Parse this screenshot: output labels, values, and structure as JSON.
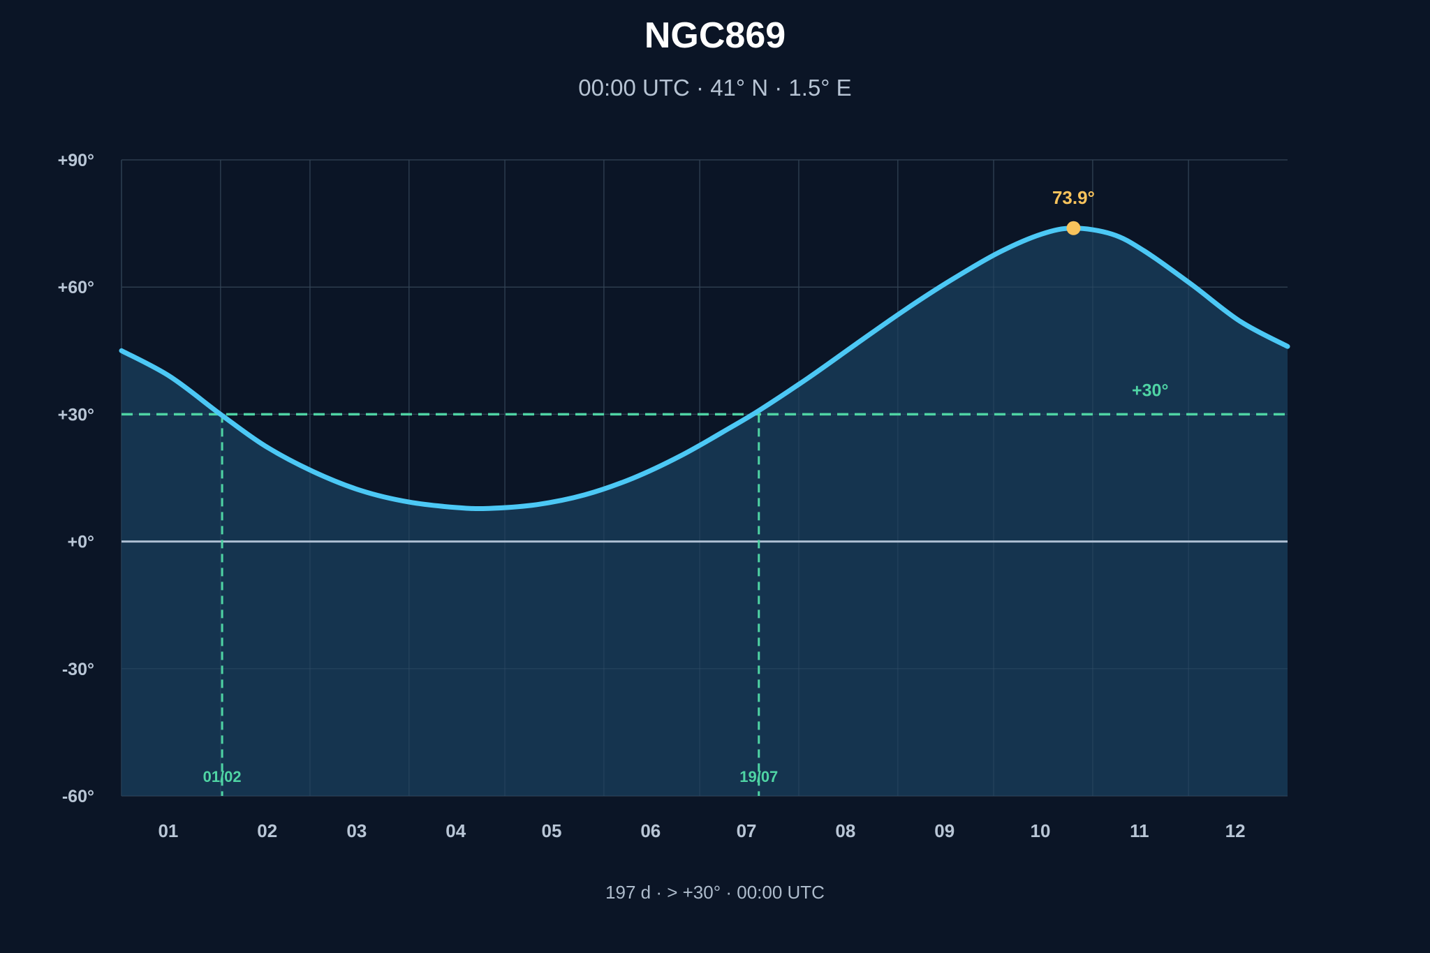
{
  "header": {
    "title": "NGC869",
    "subtitle": "00:00 UTC · 41° N · 1.5° E"
  },
  "footer": {
    "note": "197 d · > +30° · 00:00 UTC"
  },
  "colors": {
    "background": "#0b1526",
    "curve": "#4cc8f5",
    "area_fill": "#173a57",
    "grid": "#243547",
    "threshold": "#4fd4a4",
    "horizon": "#aebfd3",
    "peak": "#f8c35c"
  },
  "chart_data": {
    "type": "area",
    "title": "NGC869",
    "subtitle": "00:00 UTC · 41° N · 1.5° E",
    "xlabel": "",
    "ylabel": "",
    "x_unit": "day of year",
    "xlim": [
      0,
      365
    ],
    "ylim": [
      -60,
      90
    ],
    "yticks": [
      {
        "value": -60,
        "label": "-60°"
      },
      {
        "value": -30,
        "label": "-30°"
      },
      {
        "value": 0,
        "label": "+0°"
      },
      {
        "value": 30,
        "label": "+30°"
      },
      {
        "value": 60,
        "label": "+60°"
      },
      {
        "value": 90,
        "label": "+90°"
      }
    ],
    "xticks": [
      {
        "label": "01",
        "day": 15.5
      },
      {
        "label": "02",
        "day": 46.5
      },
      {
        "label": "03",
        "day": 74.5
      },
      {
        "label": "04",
        "day": 105.5
      },
      {
        "label": "05",
        "day": 135.5
      },
      {
        "label": "06",
        "day": 166.5
      },
      {
        "label": "07",
        "day": 196.5
      },
      {
        "label": "08",
        "day": 227.5
      },
      {
        "label": "09",
        "day": 258.5
      },
      {
        "label": "10",
        "day": 288.5
      },
      {
        "label": "11",
        "day": 319.5
      },
      {
        "label": "12",
        "day": 349.5
      }
    ],
    "month_boundaries": [
      31,
      59,
      90,
      120,
      151,
      181,
      212,
      243,
      273,
      304,
      334
    ],
    "grid": true,
    "series": [
      {
        "values": [
          [
            0,
            45
          ],
          [
            15,
            39
          ],
          [
            31,
            30
          ],
          [
            45,
            22.5
          ],
          [
            60,
            16.5
          ],
          [
            75,
            12
          ],
          [
            90,
            9.3
          ],
          [
            105,
            8
          ],
          [
            115,
            7.8
          ],
          [
            130,
            8.7
          ],
          [
            145,
            11
          ],
          [
            160,
            14.9
          ],
          [
            175,
            20.2
          ],
          [
            190,
            26.6
          ],
          [
            200,
            31.1
          ],
          [
            215,
            38.6
          ],
          [
            230,
            46.6
          ],
          [
            245,
            54.5
          ],
          [
            260,
            61.8
          ],
          [
            275,
            68.3
          ],
          [
            288,
            72.5
          ],
          [
            298,
            73.9
          ],
          [
            310,
            72.5
          ],
          [
            320,
            68.6
          ],
          [
            335,
            60.6
          ],
          [
            350,
            52
          ],
          [
            365,
            46
          ]
        ]
      }
    ],
    "threshold": {
      "value": 30,
      "label": "+30°"
    },
    "crossings": [
      {
        "day": 31.5,
        "label": "01/02"
      },
      {
        "day": 199.5,
        "label": "19/07"
      }
    ],
    "peak": {
      "day": 298,
      "value": 73.9,
      "label": "73.9°"
    }
  }
}
